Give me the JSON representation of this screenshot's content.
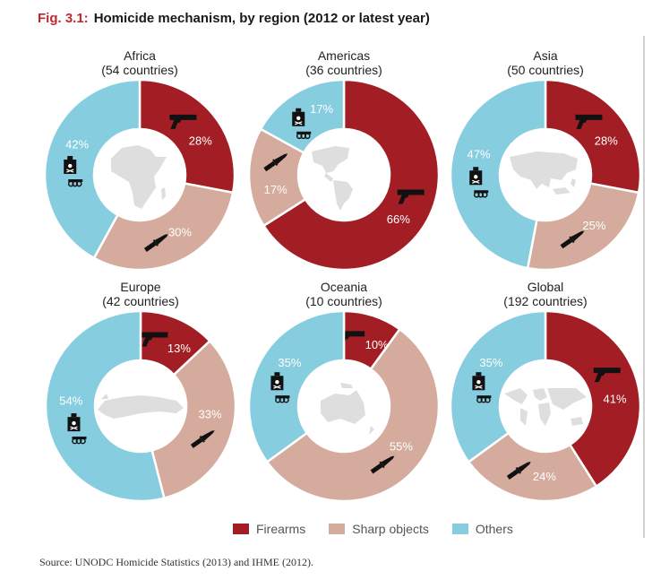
{
  "figure": {
    "number": "Fig. 3.1:",
    "title": "Homicide mechanism, by region (2012 or latest year)"
  },
  "colors": {
    "Firearms": "#a31d24",
    "Sharp objects": "#d4ab9c",
    "Others": "#86cddf",
    "map": "#dedede",
    "center": "#ffffff"
  },
  "legend": [
    "Firearms",
    "Sharp objects",
    "Others"
  ],
  "source": "Source: UNODC Homicide Statistics (2013) and IHME (2012).",
  "chart_data": [
    {
      "type": "pie",
      "region": "Africa",
      "subtitle": "(54 countries)",
      "map_icon": "africa-map-icon",
      "slices": [
        {
          "label": "Firearms",
          "value": 28
        },
        {
          "label": "Sharp objects",
          "value": 30
        },
        {
          "label": "Others",
          "value": 42
        }
      ]
    },
    {
      "type": "pie",
      "region": "Americas",
      "subtitle": "(36 countries)",
      "map_icon": "americas-map-icon",
      "slices": [
        {
          "label": "Firearms",
          "value": 66
        },
        {
          "label": "Sharp objects",
          "value": 17
        },
        {
          "label": "Others",
          "value": 17
        }
      ]
    },
    {
      "type": "pie",
      "region": "Asia",
      "subtitle": "(50 countries)",
      "map_icon": "asia-map-icon",
      "slices": [
        {
          "label": "Firearms",
          "value": 28
        },
        {
          "label": "Sharp objects",
          "value": 25
        },
        {
          "label": "Others",
          "value": 47
        }
      ]
    },
    {
      "type": "pie",
      "region": "Europe",
      "subtitle": "(42 countries)",
      "map_icon": "europe-map-icon",
      "slices": [
        {
          "label": "Firearms",
          "value": 13
        },
        {
          "label": "Sharp objects",
          "value": 33
        },
        {
          "label": "Others",
          "value": 54
        }
      ]
    },
    {
      "type": "pie",
      "region": "Oceania",
      "subtitle": "(10 countries)",
      "map_icon": "oceania-map-icon",
      "slices": [
        {
          "label": "Firearms",
          "value": 10
        },
        {
          "label": "Sharp objects",
          "value": 55
        },
        {
          "label": "Others",
          "value": 35
        }
      ]
    },
    {
      "type": "pie",
      "region": "Global",
      "subtitle": "(192 countries)",
      "map_icon": "world-map-icon",
      "slices": [
        {
          "label": "Firearms",
          "value": 41
        },
        {
          "label": "Sharp objects",
          "value": 24
        },
        {
          "label": "Others",
          "value": 35
        }
      ]
    }
  ]
}
